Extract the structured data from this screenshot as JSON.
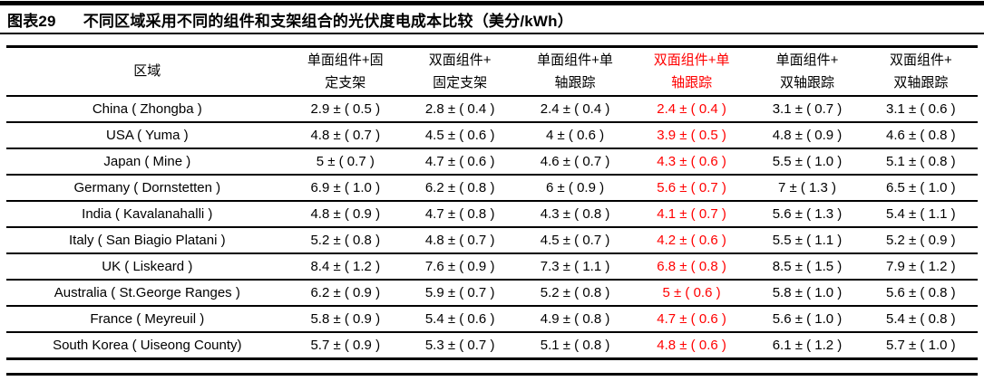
{
  "colors": {
    "highlight_red": "#ff0000",
    "rule_black": "#000000",
    "background": "#ffffff"
  },
  "figure": {
    "label": "图表29",
    "title": "不同区域采用不同的组件和支架组合的光伏度电成本比较（美分/kWh）"
  },
  "chart_data": {
    "type": "table",
    "title": "图表29 不同区域采用不同的组件和支架组合的光伏度电成本比较（美分/kWh）",
    "unit": "美分/kWh",
    "region_header": "区域",
    "columns": [
      {
        "id": "mono-fixed",
        "line1": "单面组件+固",
        "line2": "定支架",
        "highlight": false
      },
      {
        "id": "bi-fixed",
        "line1": "双面组件+",
        "line2": "固定支架",
        "highlight": false
      },
      {
        "id": "mono-single-axis",
        "line1": "单面组件+单",
        "line2": "轴跟踪",
        "highlight": false
      },
      {
        "id": "bi-single-axis",
        "line1": "双面组件+单",
        "line2": "轴跟踪",
        "highlight": true
      },
      {
        "id": "mono-dual-axis",
        "line1": "单面组件+",
        "line2": "双轴跟踪",
        "highlight": false
      },
      {
        "id": "bi-dual-axis",
        "line1": "双面组件+",
        "line2": "双轴跟踪",
        "highlight": false
      }
    ],
    "rows": [
      {
        "region": "China ( Zhongba )",
        "cells": [
          "2.9 ± ( 0.5 )",
          "2.8 ± ( 0.4 )",
          "2.4 ± ( 0.4 )",
          "2.4 ± ( 0.4 )",
          "3.1 ± ( 0.7 )",
          "3.1 ± ( 0.6 )"
        ]
      },
      {
        "region": "USA ( Yuma )",
        "cells": [
          "4.8 ± ( 0.7 )",
          "4.5 ± ( 0.6 )",
          "4 ± ( 0.6 )",
          "3.9 ± ( 0.5 )",
          "4.8 ± ( 0.9 )",
          "4.6 ± ( 0.8 )"
        ]
      },
      {
        "region": "Japan ( Mine )",
        "cells": [
          "5 ± ( 0.7 )",
          "4.7 ± ( 0.6 )",
          "4.6 ± ( 0.7 )",
          "4.3 ± ( 0.6 )",
          "5.5 ± ( 1.0 )",
          "5.1 ± ( 0.8 )"
        ]
      },
      {
        "region": "Germany ( Dornstetten )",
        "cells": [
          "6.9 ± ( 1.0 )",
          "6.2 ± ( 0.8 )",
          "6 ± ( 0.9 )",
          "5.6 ± ( 0.7 )",
          "7 ± ( 1.3 )",
          "6.5 ± ( 1.0 )"
        ]
      },
      {
        "region": "India ( Kavalanahalli )",
        "cells": [
          "4.8 ± ( 0.9 )",
          "4.7 ± ( 0.8 )",
          "4.3 ± ( 0.8 )",
          "4.1 ± ( 0.7 )",
          "5.6 ± ( 1.3 )",
          "5.4 ± ( 1.1 )"
        ]
      },
      {
        "region": "Italy ( San Biagio Platani )",
        "cells": [
          "5.2 ± ( 0.8 )",
          "4.8 ± ( 0.7 )",
          "4.5 ± ( 0.7 )",
          "4.2 ± ( 0.6 )",
          "5.5 ± ( 1.1 )",
          "5.2 ± ( 0.9 )"
        ]
      },
      {
        "region": "UK ( Liskeard )",
        "cells": [
          "8.4 ± ( 1.2 )",
          "7.6 ± ( 0.9 )",
          "7.3 ± ( 1.1 )",
          "6.8 ± ( 0.8 )",
          "8.5 ± ( 1.5 )",
          "7.9 ± ( 1.2 )"
        ]
      },
      {
        "region": "Australia ( St.George Ranges )",
        "cells": [
          "6.2 ± ( 0.9 )",
          "5.9 ± ( 0.7 )",
          "5.2 ± ( 0.8 )",
          "5 ± ( 0.6 )",
          "5.8 ± ( 1.0 )",
          "5.6 ± ( 0.8 )"
        ]
      },
      {
        "region": "France ( Meyreuil )",
        "cells": [
          "5.8 ± ( 0.9 )",
          "5.4 ± ( 0.6 )",
          "4.9 ± ( 0.8 )",
          "4.7 ± ( 0.6 )",
          "5.6 ± ( 1.0 )",
          "5.4 ± ( 0.8 )"
        ]
      },
      {
        "region": "South Korea ( Uiseong County)",
        "cells": [
          "5.7 ± ( 0.9 )",
          "5.3 ± ( 0.7 )",
          "5.1 ± ( 0.8 )",
          "4.8 ± ( 0.6 )",
          "6.1 ± ( 1.2 )",
          "5.7 ± ( 1.0 )"
        ]
      }
    ]
  }
}
